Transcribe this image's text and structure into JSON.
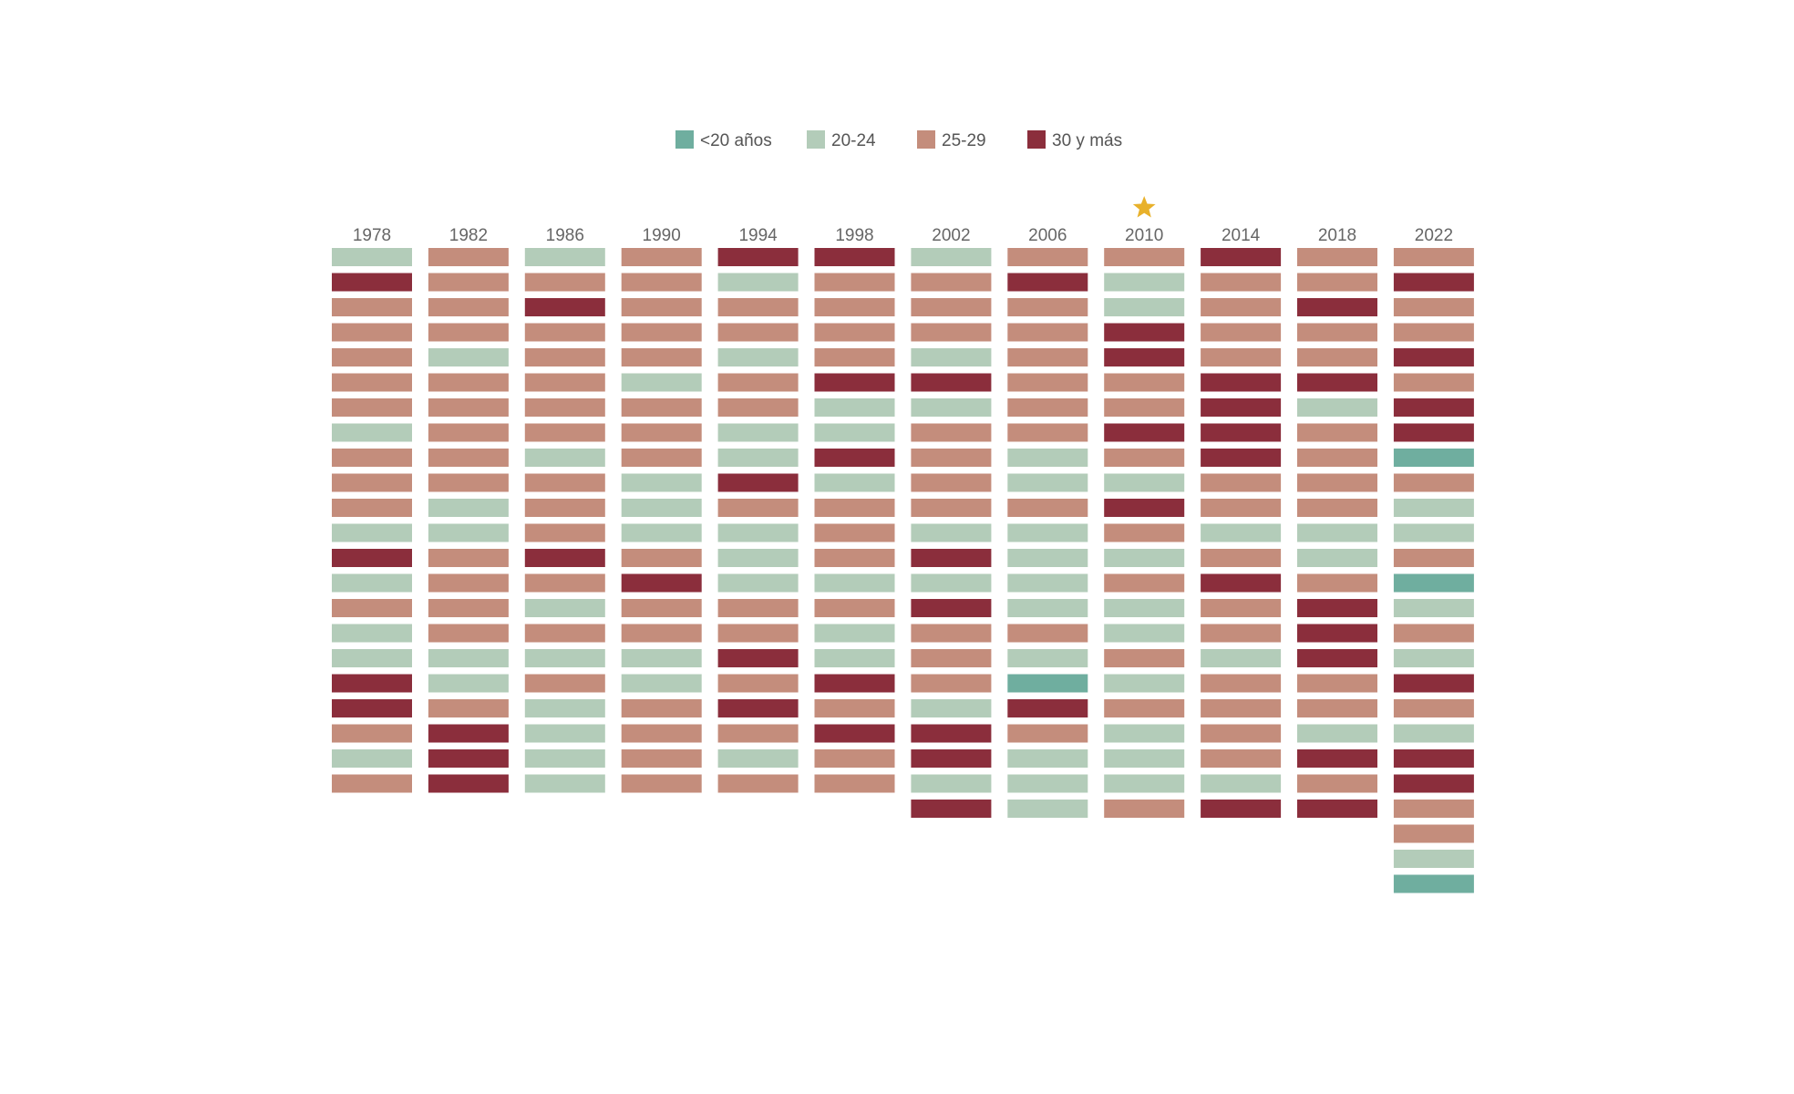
{
  "chart_data": {
    "type": "waffle",
    "legend": [
      {
        "key": "lt20",
        "label": "<20 años",
        "color": "#6fae9f"
      },
      {
        "key": "20-24",
        "label": "20-24",
        "color": "#b3ccb9"
      },
      {
        "key": "25-29",
        "label": "25-29",
        "color": "#c48d7c"
      },
      {
        "key": "30+",
        "label": "30 y más",
        "color": "#8b2e3c"
      }
    ],
    "highlight": {
      "year": "2010",
      "marker": "star-icon",
      "color": "#e8b12b"
    },
    "columns": [
      {
        "year": "1978",
        "cells": [
          "20-24",
          "30+",
          "25-29",
          "25-29",
          "25-29",
          "25-29",
          "25-29",
          "20-24",
          "25-29",
          "25-29",
          "25-29",
          "20-24",
          "30+",
          "20-24",
          "25-29",
          "20-24",
          "20-24",
          "30+",
          "30+",
          "25-29",
          "20-24",
          "25-29"
        ]
      },
      {
        "year": "1982",
        "cells": [
          "25-29",
          "25-29",
          "25-29",
          "25-29",
          "20-24",
          "25-29",
          "25-29",
          "25-29",
          "25-29",
          "25-29",
          "20-24",
          "20-24",
          "25-29",
          "25-29",
          "25-29",
          "25-29",
          "20-24",
          "20-24",
          "25-29",
          "30+",
          "30+",
          "30+"
        ]
      },
      {
        "year": "1986",
        "cells": [
          "20-24",
          "25-29",
          "30+",
          "25-29",
          "25-29",
          "25-29",
          "25-29",
          "25-29",
          "20-24",
          "25-29",
          "25-29",
          "25-29",
          "30+",
          "25-29",
          "20-24",
          "25-29",
          "20-24",
          "25-29",
          "20-24",
          "20-24",
          "20-24",
          "20-24"
        ]
      },
      {
        "year": "1990",
        "cells": [
          "25-29",
          "25-29",
          "25-29",
          "25-29",
          "25-29",
          "20-24",
          "25-29",
          "25-29",
          "25-29",
          "20-24",
          "20-24",
          "20-24",
          "25-29",
          "30+",
          "25-29",
          "25-29",
          "20-24",
          "20-24",
          "25-29",
          "25-29",
          "25-29",
          "25-29"
        ]
      },
      {
        "year": "1994",
        "cells": [
          "30+",
          "20-24",
          "25-29",
          "25-29",
          "20-24",
          "25-29",
          "25-29",
          "20-24",
          "20-24",
          "30+",
          "25-29",
          "20-24",
          "20-24",
          "20-24",
          "25-29",
          "25-29",
          "30+",
          "25-29",
          "30+",
          "25-29",
          "20-24",
          "25-29"
        ]
      },
      {
        "year": "1998",
        "cells": [
          "30+",
          "25-29",
          "25-29",
          "25-29",
          "25-29",
          "30+",
          "20-24",
          "20-24",
          "30+",
          "20-24",
          "25-29",
          "25-29",
          "25-29",
          "20-24",
          "25-29",
          "20-24",
          "20-24",
          "30+",
          "25-29",
          "30+",
          "25-29",
          "25-29"
        ]
      },
      {
        "year": "2002",
        "cells": [
          "20-24",
          "25-29",
          "25-29",
          "25-29",
          "20-24",
          "30+",
          "20-24",
          "25-29",
          "25-29",
          "25-29",
          "25-29",
          "20-24",
          "30+",
          "20-24",
          "30+",
          "25-29",
          "25-29",
          "25-29",
          "20-24",
          "30+",
          "30+",
          "20-24",
          "30+"
        ]
      },
      {
        "year": "2006",
        "cells": [
          "25-29",
          "30+",
          "25-29",
          "25-29",
          "25-29",
          "25-29",
          "25-29",
          "25-29",
          "20-24",
          "20-24",
          "25-29",
          "20-24",
          "20-24",
          "20-24",
          "20-24",
          "25-29",
          "20-24",
          "lt20",
          "30+",
          "25-29",
          "20-24",
          "20-24",
          "20-24"
        ]
      },
      {
        "year": "2010",
        "cells": [
          "25-29",
          "20-24",
          "20-24",
          "30+",
          "30+",
          "25-29",
          "25-29",
          "30+",
          "25-29",
          "20-24",
          "30+",
          "25-29",
          "20-24",
          "25-29",
          "20-24",
          "20-24",
          "25-29",
          "20-24",
          "25-29",
          "20-24",
          "20-24",
          "20-24",
          "25-29"
        ]
      },
      {
        "year": "2014",
        "cells": [
          "30+",
          "25-29",
          "25-29",
          "25-29",
          "25-29",
          "30+",
          "30+",
          "30+",
          "30+",
          "25-29",
          "25-29",
          "20-24",
          "25-29",
          "30+",
          "25-29",
          "25-29",
          "20-24",
          "25-29",
          "25-29",
          "25-29",
          "25-29",
          "20-24",
          "30+"
        ]
      },
      {
        "year": "2018",
        "cells": [
          "25-29",
          "25-29",
          "30+",
          "25-29",
          "25-29",
          "30+",
          "20-24",
          "25-29",
          "25-29",
          "25-29",
          "25-29",
          "20-24",
          "20-24",
          "25-29",
          "30+",
          "30+",
          "30+",
          "25-29",
          "25-29",
          "20-24",
          "30+",
          "25-29",
          "30+"
        ]
      },
      {
        "year": "2022",
        "cells": [
          "25-29",
          "30+",
          "25-29",
          "25-29",
          "30+",
          "25-29",
          "30+",
          "30+",
          "lt20",
          "25-29",
          "20-24",
          "20-24",
          "25-29",
          "lt20",
          "20-24",
          "25-29",
          "20-24",
          "30+",
          "25-29",
          "20-24",
          "30+",
          "30+",
          "25-29",
          "25-29",
          "20-24",
          "lt20"
        ]
      }
    ]
  }
}
